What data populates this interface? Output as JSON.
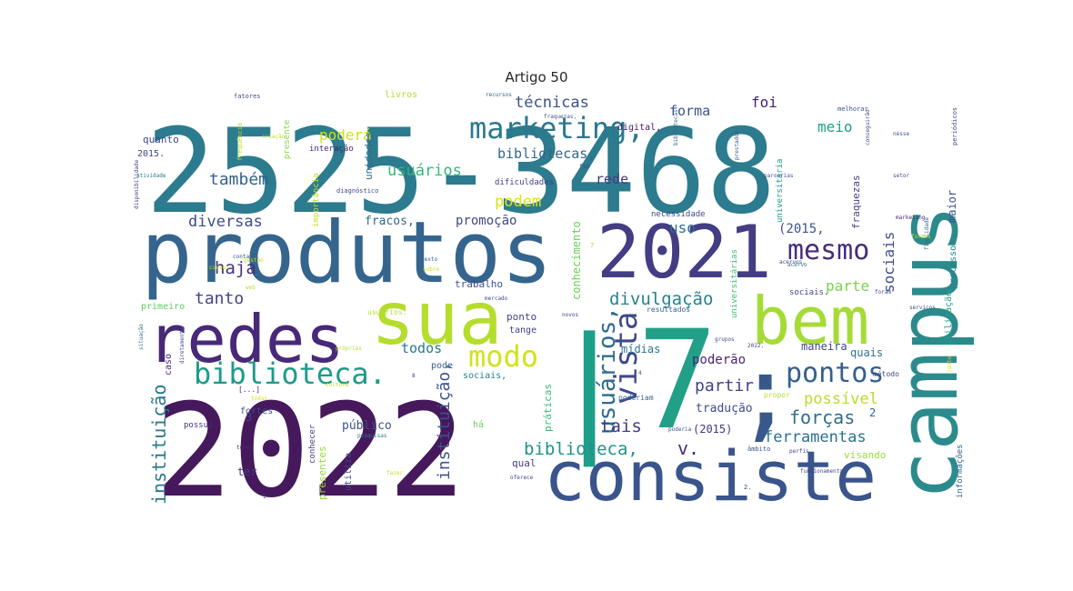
{
  "title": "Artigo 50",
  "words": [
    {
      "text": "2525-3468",
      "color": "#2c7b8e"
    },
    {
      "text": "2022",
      "color": "#46185c"
    },
    {
      "text": "produtos",
      "color": "#35658d"
    },
    {
      "text": "consiste",
      "color": "#3a548c"
    },
    {
      "text": "campus",
      "color": "#2b8a8c"
    },
    {
      "text": "7",
      "color": "#22a087"
    },
    {
      "text": "sua",
      "color": "#b4dd2c"
    },
    {
      "text": "bem",
      "color": "#a5db36"
    },
    {
      "text": "2021",
      "color": "#433d84"
    },
    {
      "text": "redes",
      "color": "#482878"
    },
    {
      "text": ";",
      "color": "#38588c"
    },
    {
      "text": "|",
      "color": "#1f9e89"
    },
    {
      "text": "marketing,",
      "color": "#2a788e"
    },
    {
      "text": "biblioteca.",
      "color": "#1e9b8a"
    },
    {
      "text": "mesmo",
      "color": "#472d7b"
    },
    {
      "text": "modo",
      "color": "#d2e21b"
    },
    {
      "text": "pontos",
      "color": "#35608d"
    },
    {
      "text": "vista",
      "color": "#3f4889"
    },
    {
      "text": "usuários,",
      "color": "#2f6c8e"
    },
    {
      "text": "técnicas",
      "color": "#3b528b"
    },
    {
      "text": "também",
      "color": "#33638d"
    },
    {
      "text": "diversas",
      "color": "#3e4c8a"
    },
    {
      "text": "usuários",
      "color": "#35b779"
    },
    {
      "text": "bibliotecas,",
      "color": "#31688e"
    },
    {
      "text": "podem",
      "color": "#dde318"
    },
    {
      "text": "haja",
      "color": "#46307e"
    },
    {
      "text": "tanto",
      "color": "#414487"
    },
    {
      "text": "poderá",
      "color": "#cde11d"
    },
    {
      "text": "divulgação",
      "color": "#26828e"
    },
    {
      "text": "instituição",
      "color": "#2a788e"
    },
    {
      "text": "instituição,",
      "color": "#3b528b"
    },
    {
      "text": "biblioteca,",
      "color": "#21918c"
    },
    {
      "text": "forças",
      "color": "#2e6e8e"
    },
    {
      "text": "possível",
      "color": "#b8de29"
    },
    {
      "text": "partir",
      "color": "#414487"
    },
    {
      "text": "tais",
      "color": "#443a83"
    },
    {
      "text": "v.",
      "color": "#472c7a"
    },
    {
      "text": "ferramentas",
      "color": "#2c718e"
    },
    {
      "text": "forma",
      "color": "#3b528b"
    },
    {
      "text": "foi",
      "color": "#482173"
    },
    {
      "text": "meio",
      "color": "#1fa088"
    },
    {
      "text": "parte",
      "color": "#7ad151"
    },
    {
      "text": "sociais",
      "color": "#3e4a89"
    },
    {
      "text": "uso",
      "color": "#2d708e"
    },
    {
      "text": "rede",
      "color": "#443983"
    },
    {
      "text": "(2015,",
      "color": "#3a548c"
    },
    {
      "text": "promoção",
      "color": "#3e4989"
    },
    {
      "text": "fracos,",
      "color": "#31688e"
    },
    {
      "text": "todos",
      "color": "#2a778e"
    },
    {
      "text": "poderão",
      "color": "#482677"
    },
    {
      "text": "tradução",
      "color": "#3d4e8a"
    },
    {
      "text": "(2015)",
      "color": "#453581"
    },
    {
      "text": "público",
      "color": "#3b528b"
    },
    {
      "text": "maneira",
      "color": "#404688"
    },
    {
      "text": "quais",
      "color": "#2c728e"
    },
    {
      "text": "mídias",
      "color": "#2a768e"
    },
    {
      "text": "conhecimento",
      "color": "#6ccd5a"
    },
    {
      "text": "trabalho",
      "color": "#3c4f8a"
    },
    {
      "text": "ponto",
      "color": "#404588"
    },
    {
      "text": "tange",
      "color": "#414287"
    },
    {
      "text": "visando",
      "color": "#9dd93b"
    },
    {
      "text": "ter",
      "color": "#424086"
    },
    {
      "text": "qual",
      "color": "#443b84"
    },
    {
      "text": "2",
      "color": "#32648e"
    },
    {
      "text": "3",
      "color": "#3d4d8a"
    },
    {
      "text": "fraquezas",
      "color": "#433e85"
    },
    {
      "text": "unidades",
      "color": "#2d708e"
    },
    {
      "text": "presentes",
      "color": "#95d840"
    },
    {
      "text": "práticas",
      "color": "#3bbb75"
    },
    {
      "text": "quanto",
      "color": "#3e4a89"
    },
    {
      "text": "2015.",
      "color": "#404588"
    },
    {
      "text": "primeiro",
      "color": "#5ec962"
    },
    {
      "text": "caso",
      "color": "#482979"
    },
    {
      "text": "fortes",
      "color": "#3b528b"
    },
    {
      "text": "possui",
      "color": "#46337f"
    },
    {
      "text": "pode",
      "color": "#34618d"
    },
    {
      "text": "sociais,",
      "color": "#25848e"
    },
    {
      "text": "há",
      "color": "#6ccd5a"
    },
    {
      "text": "utiliza",
      "color": "#404688"
    },
    {
      "text": "livros",
      "color": "#b0dd2f"
    },
    {
      "text": "interação",
      "color": "#482475"
    },
    {
      "text": "digital,",
      "color": "#481769"
    },
    {
      "text": "dificuldades",
      "color": "#433e85"
    },
    {
      "text": "necessidade",
      "color": "#3e4a89"
    },
    {
      "text": "resultados",
      "color": "#33638d"
    },
    {
      "text": "sociais.",
      "color": "#3f4788"
    },
    {
      "text": "informações",
      "color": "#31688e"
    },
    {
      "text": "utilização",
      "color": "#20a386"
    },
    {
      "text": "processo",
      "color": "#26828e"
    },
    {
      "text": "maior",
      "color": "#3b528b"
    },
    {
      "text": "universitária",
      "color": "#1f9a8a"
    },
    {
      "text": "universitárias",
      "color": "#3fbc73"
    },
    {
      "text": "importância",
      "color": "#c2df23"
    },
    {
      "text": "diagnóstico",
      "color": "#3e4a89"
    },
    {
      "text": "presente",
      "color": "#86d549"
    },
    {
      "text": "melhorar",
      "color": "#3b528b"
    },
    {
      "text": "periódicos",
      "color": "#3d4e8a"
    },
    {
      "text": "fatores",
      "color": "#3e4c8a"
    },
    {
      "text": "método",
      "color": "#404588"
    },
    {
      "text": "propor",
      "color": "#b5de2b"
    },
    {
      "text": "âmbito",
      "color": "#3b528b"
    },
    {
      "text": "perfis",
      "color": "#3f4889"
    },
    {
      "text": "conhecer",
      "color": "#433e85"
    },
    {
      "text": "pesquisas",
      "color": "#2a788e"
    },
    {
      "text": "poderiam",
      "color": "#31688e"
    },
    {
      "text": "poderia",
      "color": "#3b528b"
    },
    {
      "text": "[...]",
      "color": "#482475"
    },
    {
      "text": "frequência",
      "color": "#b5de2b"
    },
    {
      "text": "criação",
      "color": "#b8de29"
    },
    {
      "text": "grupos",
      "color": "#3b528b"
    },
    {
      "text": "acervo",
      "color": "#2c728e"
    },
    {
      "text": "próprias",
      "color": "#b5de2b"
    },
    {
      "text": "cultura",
      "color": "#bddf26"
    },
    {
      "text": "todas",
      "color": "#d8e219"
    },
    {
      "text": "fim",
      "color": "#3e4a89"
    },
    {
      "text": "tudo",
      "color": "#482878"
    },
    {
      "text": "fazer",
      "color": "#c2df23"
    },
    {
      "text": "recursos",
      "color": "#31688e"
    },
    {
      "text": "mercado",
      "color": "#3b528b"
    },
    {
      "text": "situação",
      "color": "#2a788e"
    },
    {
      "text": "diretamente",
      "color": "#3e4a89"
    },
    {
      "text": "disponibilidade",
      "color": "#433e85"
    },
    {
      "text": "finalidade",
      "color": "#31688e"
    },
    {
      "text": "conseguirão",
      "color": "#3e4a89"
    },
    {
      "text": "junto",
      "color": "#d8e219"
    },
    {
      "text": "usuários.",
      "color": "#b5de2b"
    },
    {
      "text": "sobre",
      "color": "#d0e11c"
    },
    {
      "text": "fraquezas,",
      "color": "#3b528b"
    },
    {
      "text": "bibliotecas.",
      "color": "#31688e"
    },
    {
      "text": "gestão",
      "color": "#c2df23"
    },
    {
      "text": "setor",
      "color": "#3e4a89"
    },
    {
      "text": "web",
      "color": "#b5de2b"
    },
    {
      "text": "conta",
      "color": "#3b528b"
    },
    {
      "text": "marketing",
      "color": "#482475"
    },
    {
      "text": "prestados",
      "color": "#3b528b"
    },
    {
      "text": "2022.",
      "color": "#433e85"
    },
    {
      "text": "nesse",
      "color": "#3b528b"
    },
    {
      "text": "novos",
      "color": "#3e4a89"
    },
    {
      "text": "atividade",
      "color": "#2a788e"
    },
    {
      "text": "parcerias",
      "color": "#3b528b"
    },
    {
      "text": "acervos.",
      "color": "#3e4a89"
    },
    {
      "text": "serviços",
      "color": "#3b528b"
    },
    {
      "text": "formas",
      "color": "#b5de2b"
    },
    {
      "text": "funcionamento",
      "color": "#3e4a89"
    },
    {
      "text": "1",
      "color": "#3b528b"
    },
    {
      "text": "2.",
      "color": "#3e4a89"
    },
    {
      "text": "7",
      "color": "#b8de29"
    },
    {
      "text": "4",
      "color": "#3b528b"
    },
    {
      "text": "8",
      "color": "#433e85"
    },
    {
      "text": "cursos",
      "color": "#c2df23"
    },
    {
      "text": "texto",
      "color": "#31688e"
    },
    {
      "text": "foram",
      "color": "#3b528b"
    },
    {
      "text": "oferece",
      "color": "#3e4a89"
    }
  ]
}
